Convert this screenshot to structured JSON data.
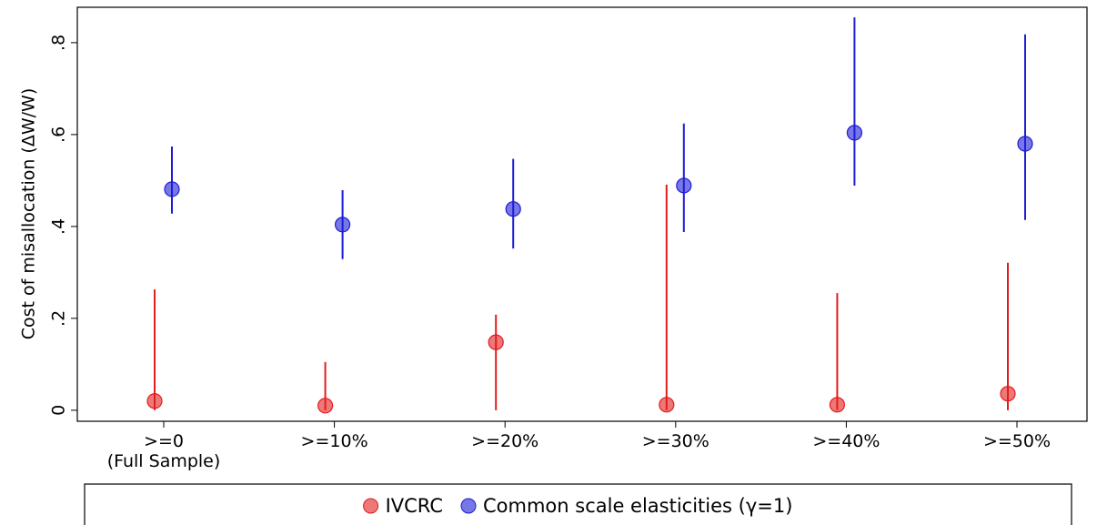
{
  "chart_data": {
    "type": "dot-interval",
    "y_label": "Cost of misallocation (ΔW/W)",
    "categories": [
      ">=0\n(Full Sample)",
      ">=10%",
      ">=20%",
      ">=30%",
      ">=40%",
      ">=50%"
    ],
    "ylim": [
      -0.024,
      0.877
    ],
    "yticks": [
      0,
      {
        "value": 0.2,
        "label": ".2"
      },
      {
        "value": 0.4,
        "label": ".4"
      },
      {
        "value": 0.6,
        "label": ".6"
      },
      {
        "value": 0.8,
        "label": ".8"
      }
    ],
    "legend_position": "bottom",
    "series": [
      {
        "name": "IVCRC",
        "color": "#e31c1c",
        "values": [
          0.02,
          0.01,
          0.148,
          0.012,
          0.012,
          0.036
        ],
        "lower": [
          0,
          0,
          0,
          0,
          0,
          0
        ],
        "upper": [
          0.263,
          0.105,
          0.208,
          0.491,
          0.255,
          0.321
        ]
      },
      {
        "name": "Common scale elasticities (γ=1)",
        "color": "#1c1cd6",
        "values": [
          0.481,
          0.404,
          0.438,
          0.489,
          0.604,
          0.58
        ],
        "lower": [
          0.428,
          0.329,
          0.352,
          0.388,
          0.489,
          0.414
        ],
        "upper": [
          0.574,
          0.479,
          0.547,
          0.624,
          0.855,
          0.818
        ]
      }
    ]
  }
}
